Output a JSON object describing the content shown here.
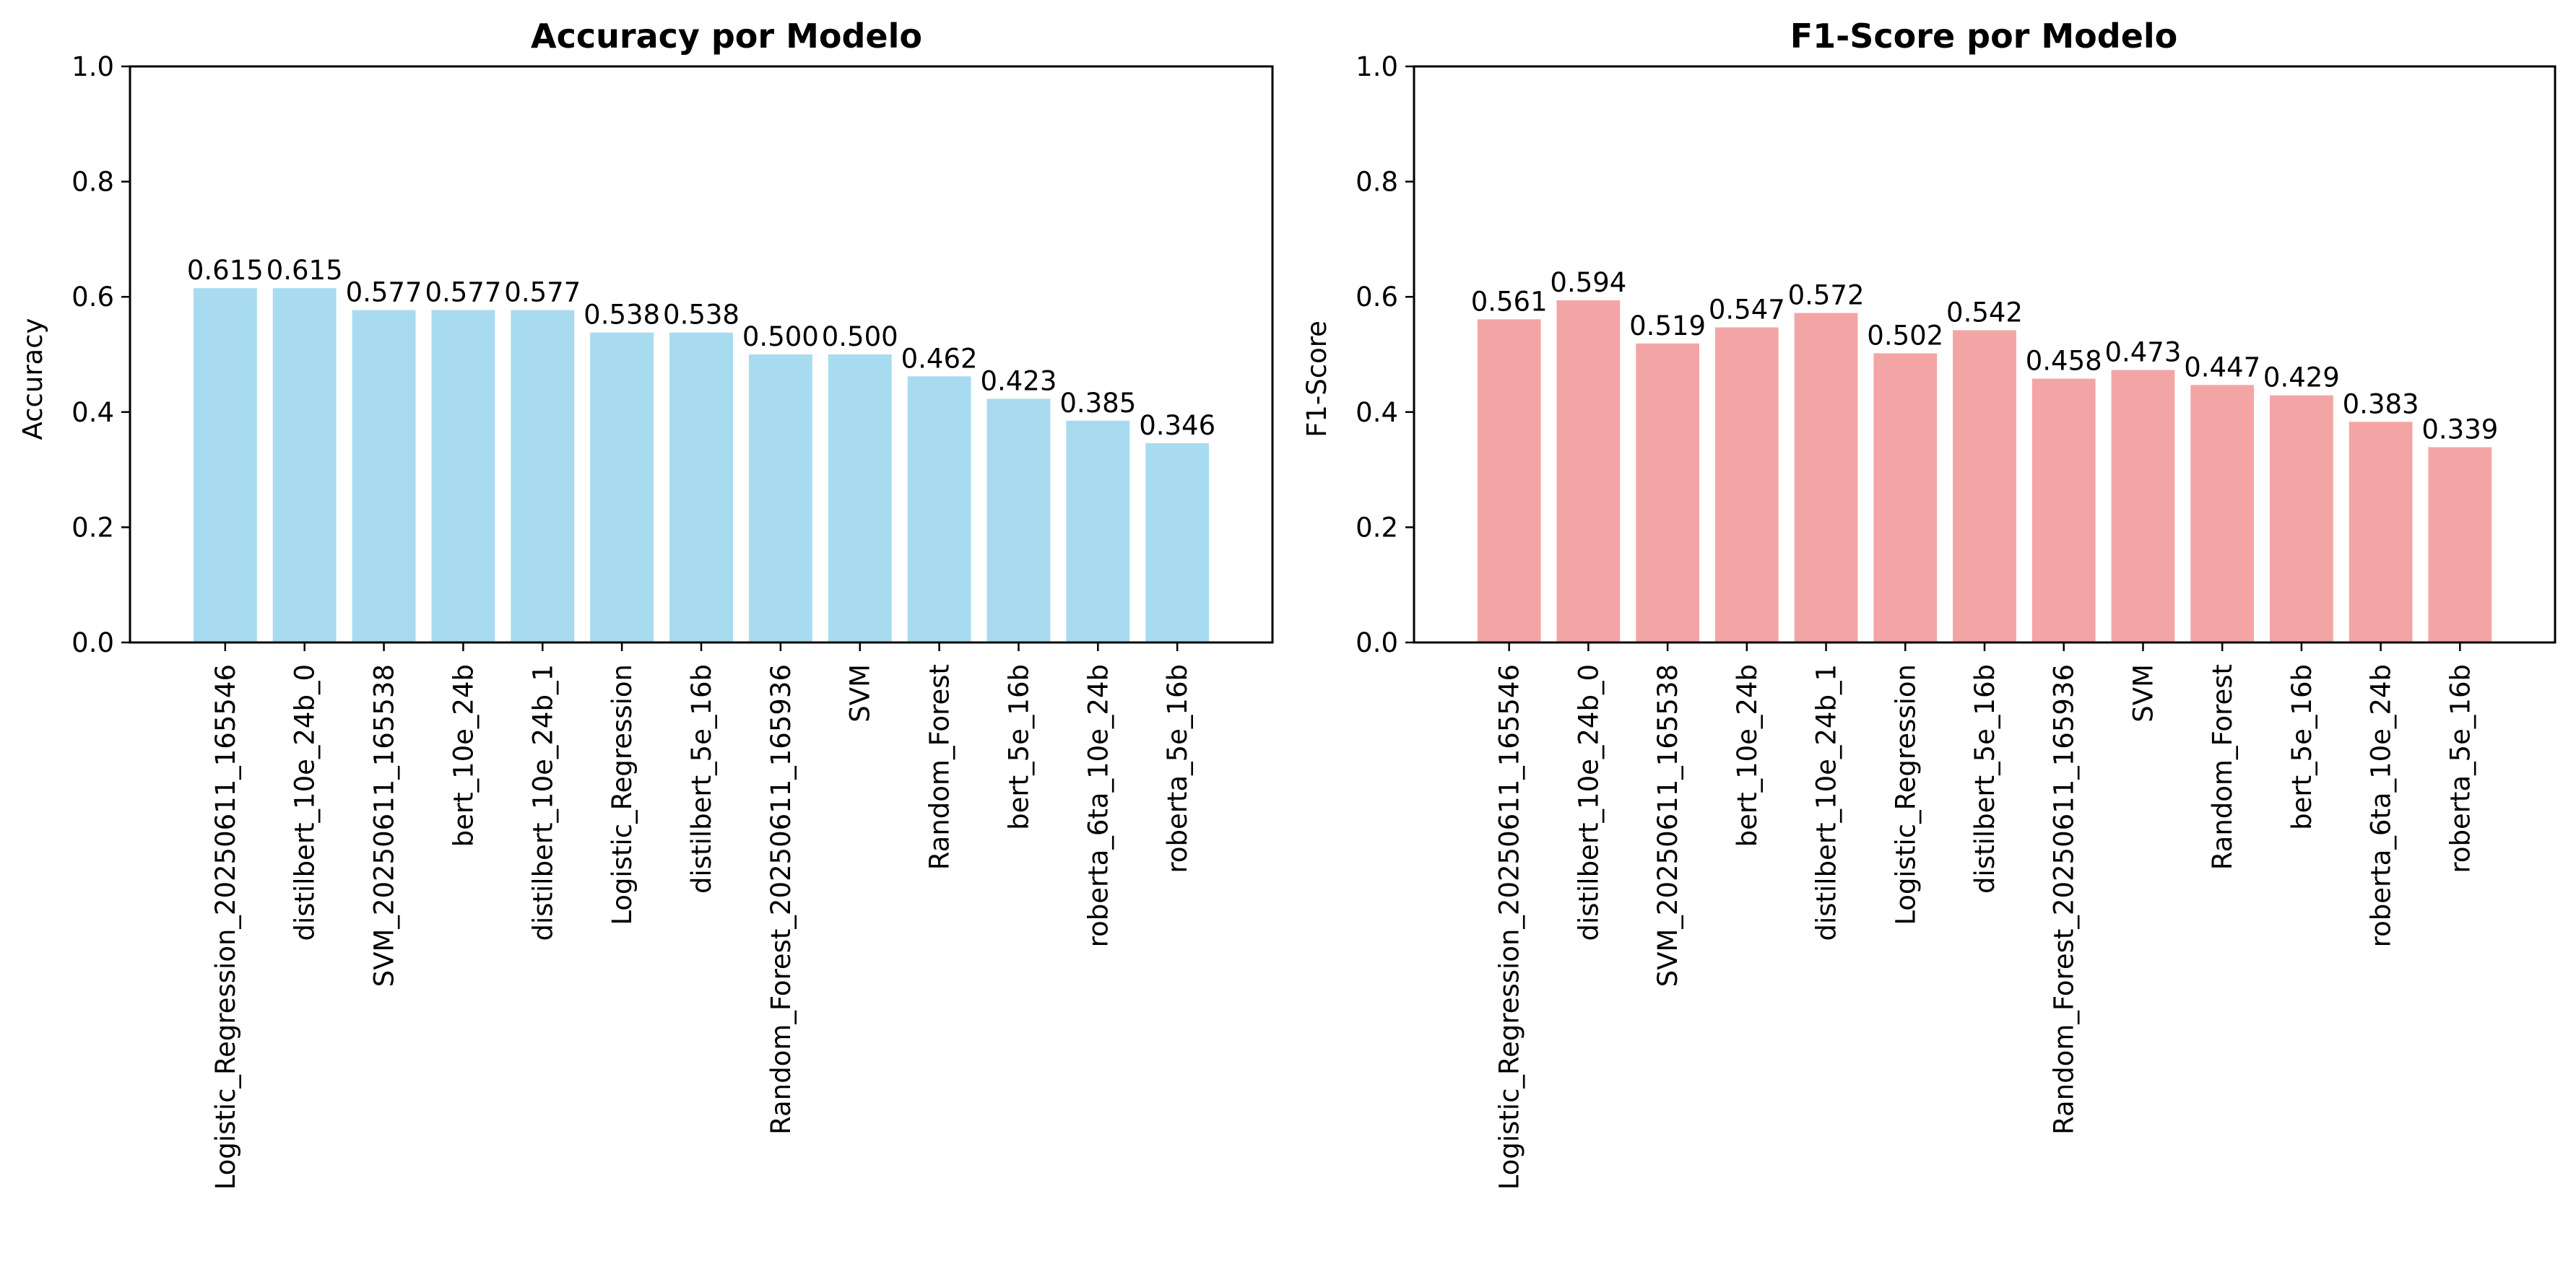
{
  "chart_data": [
    {
      "type": "bar",
      "title": "Accuracy por Modelo",
      "xlabel": "",
      "ylabel": "Accuracy",
      "ylim": [
        0,
        1.0
      ],
      "yticks": [
        "0.0",
        "0.2",
        "0.4",
        "0.6",
        "0.8",
        "1.0"
      ],
      "grid": false,
      "color": "#a8dbef",
      "categories": [
        "Logistic_Regression_20250611_165546",
        "distilbert_10e_24b_0",
        "SVM_20250611_165538",
        "bert_10e_24b",
        "distilbert_10e_24b_1",
        "Logistic_Regression",
        "distilbert_5e_16b",
        "Random_Forest_20250611_165936",
        "SVM",
        "Random_Forest",
        "bert_5e_16b",
        "roberta_6ta_10e_24b",
        "roberta_5e_16b"
      ],
      "values": [
        0.615,
        0.615,
        0.577,
        0.577,
        0.577,
        0.538,
        0.538,
        0.5,
        0.5,
        0.462,
        0.423,
        0.385,
        0.346
      ],
      "value_labels": [
        "0.615",
        "0.615",
        "0.577",
        "0.577",
        "0.577",
        "0.538",
        "0.538",
        "0.500",
        "0.500",
        "0.462",
        "0.423",
        "0.385",
        "0.346"
      ]
    },
    {
      "type": "bar",
      "title": "F1-Score por Modelo",
      "xlabel": "",
      "ylabel": "F1-Score",
      "ylim": [
        0,
        1.0
      ],
      "yticks": [
        "0.0",
        "0.2",
        "0.4",
        "0.6",
        "0.8",
        "1.0"
      ],
      "grid": false,
      "color": "#f3a5a6",
      "categories": [
        "Logistic_Regression_20250611_165546",
        "distilbert_10e_24b_0",
        "SVM_20250611_165538",
        "bert_10e_24b",
        "distilbert_10e_24b_1",
        "Logistic_Regression",
        "distilbert_5e_16b",
        "Random_Forest_20250611_165936",
        "SVM",
        "Random_Forest",
        "bert_5e_16b",
        "roberta_6ta_10e_24b",
        "roberta_5e_16b"
      ],
      "values": [
        0.561,
        0.594,
        0.519,
        0.547,
        0.572,
        0.502,
        0.542,
        0.458,
        0.473,
        0.447,
        0.429,
        0.383,
        0.339
      ],
      "value_labels": [
        "0.561",
        "0.594",
        "0.519",
        "0.547",
        "0.572",
        "0.502",
        "0.542",
        "0.458",
        "0.473",
        "0.447",
        "0.429",
        "0.383",
        "0.339"
      ]
    }
  ]
}
